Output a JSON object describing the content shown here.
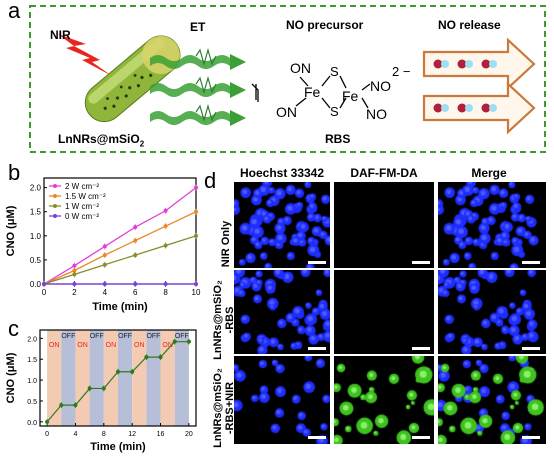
{
  "panel_a": {
    "letter": "a",
    "nir_label": "NIR",
    "nanorod_label": "LnNRs@mSiO",
    "nanorod_sub": "2",
    "et_label": "ET",
    "precursor_title": "NO precursor",
    "release_title": "NO release",
    "molecule_name": "RBS",
    "molecule_charge": "2 −",
    "atoms": {
      "on1": "ON",
      "on2": "ON",
      "fe1": "Fe",
      "fe2": "Fe",
      "s1": "S",
      "s2": "S",
      "no1": "NO",
      "no2": "NO"
    },
    "colors": {
      "dash_border": "#3f9a2c",
      "arrow_orange": "#c87a3c",
      "rod_green": "#8fb53a",
      "laser_red": "#e8261f",
      "wave_green": "#3aa035"
    }
  },
  "panel_b": {
    "letter": "b",
    "chart_data": {
      "type": "line",
      "xlabel": "Time (min)",
      "ylabel": "CNO (μM)",
      "xlim": [
        0,
        10
      ],
      "ylim": [
        0,
        2.2
      ],
      "x_ticks": [
        "0",
        "2",
        "4",
        "6",
        "8",
        "10"
      ],
      "y_ticks": [
        "0.0",
        "0.5",
        "1.0",
        "1.5",
        "2.0"
      ],
      "x": [
        0,
        2,
        4,
        6,
        8,
        10
      ],
      "series": [
        {
          "name": "2 W cm⁻²",
          "color": "#e23fd6",
          "values": [
            0,
            0.38,
            0.78,
            1.18,
            1.52,
            2.0
          ]
        },
        {
          "name": "1.5 W cm⁻²",
          "color": "#e8892a",
          "values": [
            0,
            0.28,
            0.6,
            0.9,
            1.2,
            1.5
          ]
        },
        {
          "name": "1 W cm⁻²",
          "color": "#8a8c2a",
          "values": [
            0,
            0.2,
            0.4,
            0.6,
            0.8,
            1.0
          ]
        },
        {
          "name": "0 W cm⁻²",
          "color": "#7b3fe0",
          "values": [
            0,
            0,
            0,
            0,
            0,
            0
          ]
        }
      ],
      "legend_position": "top-left"
    }
  },
  "panel_c": {
    "letter": "c",
    "chart_data": {
      "type": "line",
      "xlabel": "Time (min)",
      "ylabel": "CNO (μM)",
      "xlim": [
        -1,
        21
      ],
      "ylim": [
        -0.1,
        2.2
      ],
      "x_ticks": [
        "0",
        "4",
        "8",
        "12",
        "16",
        "20"
      ],
      "y_ticks": [
        "0.0",
        "0.5",
        "1.0",
        "1.5",
        "2.0"
      ],
      "x": [
        0,
        2,
        4,
        6,
        8,
        10,
        12,
        14,
        16,
        18,
        20
      ],
      "series": [
        {
          "name": "",
          "color": "#2f7a1f",
          "values": [
            0,
            0.4,
            0.4,
            0.8,
            0.8,
            1.2,
            1.2,
            1.55,
            1.55,
            1.92,
            1.92
          ]
        }
      ],
      "on_label": "ON",
      "off_label": "OFF",
      "intervals": [
        {
          "state": "on",
          "from": 0,
          "to": 2
        },
        {
          "state": "off",
          "from": 2,
          "to": 4
        },
        {
          "state": "on",
          "from": 4,
          "to": 6
        },
        {
          "state": "off",
          "from": 6,
          "to": 8
        },
        {
          "state": "on",
          "from": 8,
          "to": 10
        },
        {
          "state": "off",
          "from": 10,
          "to": 12
        },
        {
          "state": "on",
          "from": 12,
          "to": 14
        },
        {
          "state": "off",
          "from": 14,
          "to": 16
        },
        {
          "state": "on",
          "from": 16,
          "to": 18
        },
        {
          "state": "off",
          "from": 18,
          "to": 20
        }
      ],
      "colors": {
        "on": "#f3cbb3",
        "off": "#b7bfd8"
      }
    }
  },
  "panel_d": {
    "letter": "d",
    "columns": [
      "Hoechst 33342",
      "DAF-FM-DA",
      "Merge"
    ],
    "rows": [
      {
        "label_line1": "NIR Only",
        "label_line2": ""
      },
      {
        "label_line1": "LnNRs@mSiO₂",
        "label_line2": "-RBS"
      },
      {
        "label_line1": "LnNRs@mSiO₂",
        "label_line2": "-RBS+NIR"
      }
    ]
  }
}
